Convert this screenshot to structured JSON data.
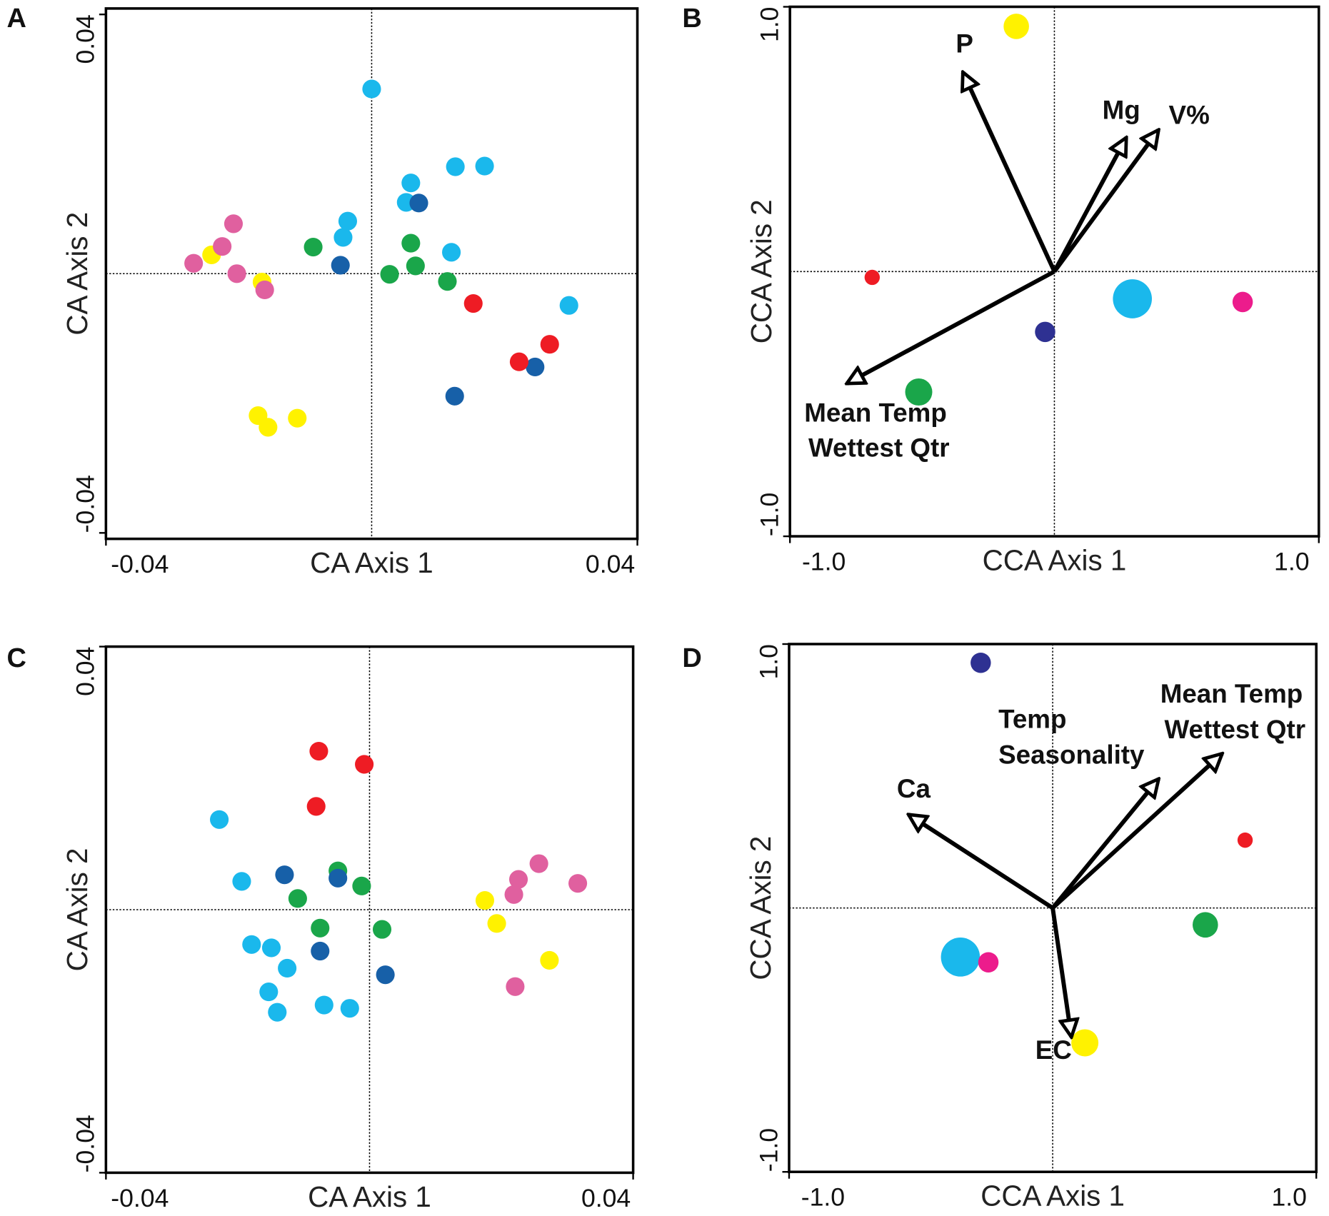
{
  "chart_data": [
    {
      "type": "scatter",
      "panel": "A",
      "xlabel": "CA Axis 1",
      "ylabel": "CA Axis 2",
      "xlim": [
        -0.04,
        0.04
      ],
      "ylim": [
        -0.04,
        0.04
      ],
      "xticks": [
        -0.04,
        0.04
      ],
      "yticks": [
        -0.04,
        0.04
      ],
      "series": [
        {
          "color": "#1ab8ec",
          "x": [
            0.0,
            0.0059,
            0.0052,
            0.0126,
            0.017,
            -0.0036,
            -0.0043,
            0.012,
            0.0297
          ],
          "y": [
            0.0285,
            0.014,
            0.011,
            0.0165,
            0.0166,
            0.0081,
            0.0056,
            0.0033,
            -0.0049
          ]
        },
        {
          "color": "#1760a8",
          "x": [
            0.0071,
            -0.0047,
            0.0246,
            0.0125
          ],
          "y": [
            0.0109,
            0.0013,
            -0.0144,
            -0.0189
          ]
        },
        {
          "color": "#1aa64a",
          "x": [
            -0.0088,
            0.0059,
            0.0066,
            0.0027,
            0.0114
          ],
          "y": [
            0.0041,
            0.0047,
            0.0012,
            -0.0001,
            -0.0012
          ]
        },
        {
          "color": "#ee1c24",
          "x": [
            0.0153,
            0.0268,
            0.0222
          ],
          "y": [
            -0.0046,
            -0.0109,
            -0.0136
          ]
        },
        {
          "color": "#fff200",
          "x": [
            -0.0241,
            -0.0165,
            -0.0171,
            -0.0156,
            -0.0112
          ],
          "y": [
            0.0029,
            -0.0013,
            -0.0219,
            -0.0237,
            -0.0223
          ]
        },
        {
          "color": "#e0609f",
          "x": [
            -0.0208,
            -0.0225,
            -0.0268,
            -0.0203,
            -0.0161
          ],
          "y": [
            0.0077,
            0.0042,
            0.0016,
            0,
            -0.0025
          ]
        }
      ]
    },
    {
      "type": "scatter",
      "panel": "B",
      "xlabel": "CCA Axis 1",
      "ylabel": "CCA Axis 2",
      "xlim": [
        -1,
        1
      ],
      "ylim": [
        -1,
        1
      ],
      "xticks": [
        {
          "value": -1,
          "label": "-1.0"
        },
        {
          "value": 1,
          "label": "1.0"
        }
      ],
      "yticks": [
        {
          "value": -1,
          "label": "-1.0"
        },
        {
          "value": 1,
          "label": "1.0"
        }
      ],
      "series": [
        {
          "color": "#fff200",
          "x": [
            -0.144
          ],
          "y": [
            0.926
          ],
          "sizes": [
            15
          ]
        },
        {
          "color": "#ee1c24",
          "x": [
            -0.689
          ],
          "y": [
            -0.022
          ],
          "sizes": [
            9
          ]
        },
        {
          "color": "#1ab8ec",
          "x": [
            0.295
          ],
          "y": [
            -0.103
          ],
          "sizes": [
            23
          ]
        },
        {
          "color": "#ec1c8c",
          "x": [
            0.712
          ],
          "y": [
            -0.115
          ],
          "sizes": [
            12
          ]
        },
        {
          "color": "#2e3192",
          "x": [
            -0.035
          ],
          "y": [
            -0.228
          ],
          "sizes": [
            12
          ]
        },
        {
          "color": "#1aa64a",
          "x": [
            -0.513
          ],
          "y": [
            -0.455
          ],
          "sizes": [
            16
          ]
        }
      ],
      "arrows": [
        {
          "label": [
            "P"
          ],
          "x": -0.346,
          "y": 0.753
        },
        {
          "label": [
            "Mg"
          ],
          "x": 0.272,
          "y": 0.506
        },
        {
          "label": [
            "V%"
          ],
          "x": 0.394,
          "y": 0.535
        },
        {
          "label": [
            "Mean Temp",
            "Wettest Qtr"
          ],
          "x": -0.785,
          "y": -0.423
        }
      ]
    },
    {
      "type": "scatter",
      "panel": "C",
      "xlabel": "CA Axis 1",
      "ylabel": "CA Axis 2",
      "xlim": [
        -0.04,
        0.04
      ],
      "ylim": [
        -0.04,
        0.04
      ],
      "xticks": [
        -0.04,
        0.04
      ],
      "yticks": [
        -0.04,
        0.04
      ],
      "series": [
        {
          "color": "#ee1c24",
          "x": [
            -0.0077,
            -0.0008,
            -0.0081
          ],
          "y": [
            0.0241,
            0.0221,
            0.0157
          ]
        },
        {
          "color": "#1ab8ec",
          "x": [
            -0.0228,
            -0.0194,
            -0.0179,
            -0.0149,
            -0.0125,
            -0.0153,
            -0.014,
            -0.0069,
            -0.003
          ],
          "y": [
            0.0137,
            0.0043,
            -0.0053,
            -0.0058,
            -0.0089,
            -0.0125,
            -0.0156,
            -0.0145,
            -0.015
          ]
        },
        {
          "color": "#1aa64a",
          "x": [
            -0.0048,
            -0.0012,
            -0.0109,
            -0.0075,
            0.0019
          ],
          "y": [
            0.0059,
            0.0036,
            0.0017,
            -0.0028,
            -0.003
          ]
        },
        {
          "color": "#1760a8",
          "x": [
            -0.0129,
            -0.0048,
            -0.0075,
            0.0024
          ],
          "y": [
            0.0053,
            0.0048,
            -0.0063,
            -0.0099
          ]
        },
        {
          "color": "#fff200",
          "x": [
            0.0175,
            0.0193,
            0.0273
          ],
          "y": [
            0.0014,
            -0.0021,
            -0.0077
          ]
        },
        {
          "color": "#e0609f",
          "x": [
            0.0257,
            0.0226,
            0.0219,
            0.0316,
            0.0221
          ],
          "y": [
            0.007,
            0.0046,
            0.0023,
            0.004,
            -0.0117
          ]
        }
      ]
    },
    {
      "type": "scatter",
      "panel": "D",
      "xlabel": "CCA Axis 1",
      "ylabel": "CCA Axis 2",
      "xlim": [
        -1,
        1
      ],
      "ylim": [
        -1,
        1
      ],
      "xticks": [
        {
          "value": -1,
          "label": "-1.0"
        },
        {
          "value": 1,
          "label": "1.0"
        }
      ],
      "yticks": [
        {
          "value": -1,
          "label": "-1.0"
        },
        {
          "value": 1,
          "label": "1.0"
        }
      ],
      "series": [
        {
          "color": "#2e3192",
          "x": [
            -0.273
          ],
          "y": [
            0.929
          ],
          "sizes": [
            12
          ]
        },
        {
          "color": "#ee1c24",
          "x": [
            0.73
          ],
          "y": [
            0.257
          ],
          "sizes": [
            9
          ]
        },
        {
          "color": "#1aa64a",
          "x": [
            0.579
          ],
          "y": [
            -0.064
          ],
          "sizes": [
            15
          ]
        },
        {
          "color": "#1ab8ec",
          "x": [
            -0.35
          ],
          "y": [
            -0.186
          ],
          "sizes": [
            23
          ]
        },
        {
          "color": "#ec1c8c",
          "x": [
            -0.244
          ],
          "y": [
            -0.206
          ],
          "sizes": [
            12
          ]
        },
        {
          "color": "#fff200",
          "x": [
            0.122
          ],
          "y": [
            -0.511
          ],
          "sizes": [
            16
          ]
        }
      ],
      "arrows": [
        {
          "label": [
            "Ca"
          ],
          "x": -0.547,
          "y": 0.354
        },
        {
          "label": [
            "Temp",
            "Seasonality"
          ],
          "x": 0.402,
          "y": 0.489
        },
        {
          "label": [
            "Mean Temp",
            "Wettest Qtr"
          ],
          "x": 0.643,
          "y": 0.585
        },
        {
          "label": [
            "EC"
          ],
          "x": 0.071,
          "y": -0.489
        }
      ]
    }
  ]
}
